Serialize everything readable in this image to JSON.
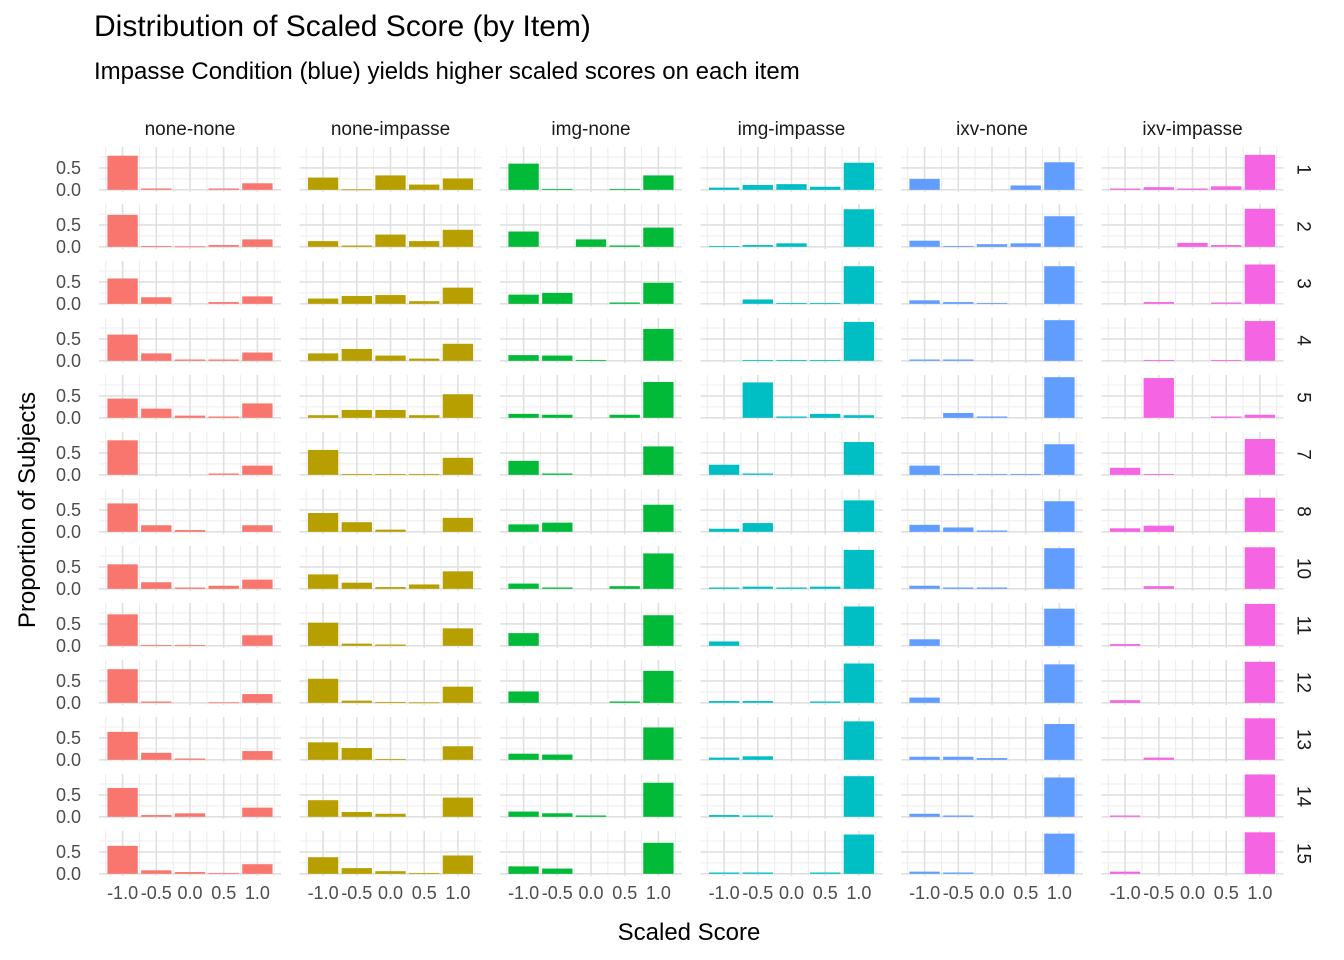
{
  "title": "Distribution of Scaled Score (by Item)",
  "subtitle": "Impasse Condition (blue) yields higher scaled scores on each item",
  "chart_data": {
    "type": "bar",
    "title": "Distribution of Scaled Score (by Item)",
    "subtitle": "Impasse Condition (blue) yields higher scaled scores on each item",
    "xlabel": "Scaled Score",
    "ylabel": "Proportion of Subjects",
    "x_categories": [
      -1.0,
      -0.5,
      0.0,
      0.5,
      1.0
    ],
    "x_tick_labels": [
      "-1.0",
      "-0.5",
      "0.0",
      "0.5",
      "1.0"
    ],
    "y_tick_labels": [
      "0.0",
      "0.5"
    ],
    "y_ticks": [
      0.0,
      0.5
    ],
    "ylim": [
      0,
      1
    ],
    "grid": true,
    "legend": "none",
    "columns": [
      {
        "name": "none-none",
        "color": "#F8766D"
      },
      {
        "name": "none-impasse",
        "color": "#B79F00"
      },
      {
        "name": "img-none",
        "color": "#00BA38"
      },
      {
        "name": "img-impasse",
        "color": "#00BFC4"
      },
      {
        "name": "ixv-none",
        "color": "#619CFF"
      },
      {
        "name": "ixv-impasse",
        "color": "#F564E3"
      }
    ],
    "rows": [
      "1",
      "2",
      "3",
      "4",
      "5",
      "7",
      "8",
      "10",
      "11",
      "12",
      "13",
      "14",
      "15"
    ],
    "values": [
      [
        [
          0.78,
          0.03,
          0,
          0.03,
          0.15
        ],
        [
          0.28,
          0.01,
          0.33,
          0.12,
          0.26
        ],
        [
          0.6,
          0.02,
          0,
          0.02,
          0.33
        ],
        [
          0.05,
          0.11,
          0.13,
          0.07,
          0.62
        ],
        [
          0.25,
          0,
          0,
          0.1,
          0.63
        ],
        [
          0.03,
          0.06,
          0.03,
          0.08,
          0.8
        ]
      ],
      [
        [
          0.73,
          0.02,
          0.01,
          0.04,
          0.17
        ],
        [
          0.13,
          0.03,
          0.28,
          0.13,
          0.39
        ],
        [
          0.35,
          0,
          0.17,
          0.03,
          0.44
        ],
        [
          0.02,
          0.04,
          0.08,
          0,
          0.86
        ],
        [
          0.14,
          0.02,
          0.06,
          0.08,
          0.7
        ],
        [
          0,
          0,
          0.09,
          0.04,
          0.87
        ]
      ],
      [
        [
          0.58,
          0.15,
          0,
          0.04,
          0.17
        ],
        [
          0.12,
          0.18,
          0.2,
          0.06,
          0.37
        ],
        [
          0.21,
          0.25,
          0,
          0.03,
          0.48
        ],
        [
          0,
          0.1,
          0.02,
          0.02,
          0.86
        ],
        [
          0.08,
          0.04,
          0.02,
          0,
          0.86
        ],
        [
          0,
          0.04,
          0,
          0.03,
          0.9
        ]
      ],
      [
        [
          0.6,
          0.17,
          0.03,
          0.03,
          0.19
        ],
        [
          0.17,
          0.27,
          0.12,
          0.05,
          0.39
        ],
        [
          0.13,
          0.12,
          0.02,
          0,
          0.73
        ],
        [
          0,
          0.02,
          0.02,
          0.02,
          0.89
        ],
        [
          0.03,
          0.03,
          0,
          0,
          0.93
        ],
        [
          0,
          0.02,
          0,
          0.02,
          0.91
        ]
      ],
      [
        [
          0.44,
          0.21,
          0.05,
          0.03,
          0.33
        ],
        [
          0.06,
          0.18,
          0.18,
          0.06,
          0.54
        ],
        [
          0.09,
          0.07,
          0,
          0.07,
          0.82
        ],
        [
          0,
          0.81,
          0.03,
          0.09,
          0.06
        ],
        [
          0,
          0.11,
          0.03,
          0,
          0.93
        ],
        [
          0,
          0.91,
          0,
          0.03,
          0.07
        ]
      ],
      [
        [
          0.79,
          0,
          0,
          0.03,
          0.21
        ],
        [
          0.57,
          0.02,
          0.02,
          0.02,
          0.39
        ],
        [
          0.32,
          0.03,
          0,
          0,
          0.65
        ],
        [
          0.23,
          0.03,
          0,
          0,
          0.75
        ],
        [
          0.21,
          0.02,
          0.02,
          0.02,
          0.7
        ],
        [
          0.16,
          0.02,
          0,
          0,
          0.82
        ]
      ],
      [
        [
          0.65,
          0.15,
          0.04,
          0,
          0.15
        ],
        [
          0.43,
          0.22,
          0.05,
          0,
          0.32
        ],
        [
          0.17,
          0.21,
          0,
          0,
          0.62
        ],
        [
          0.07,
          0.2,
          0,
          0,
          0.72
        ],
        [
          0.16,
          0.1,
          0.03,
          0,
          0.7
        ],
        [
          0.08,
          0.14,
          0,
          0,
          0.78
        ]
      ],
      [
        [
          0.56,
          0.15,
          0.03,
          0.07,
          0.21
        ],
        [
          0.33,
          0.14,
          0.04,
          0.1,
          0.4
        ],
        [
          0.12,
          0.03,
          0,
          0.06,
          0.81
        ],
        [
          0.03,
          0.05,
          0.03,
          0.05,
          0.89
        ],
        [
          0.07,
          0.03,
          0.03,
          0,
          0.93
        ],
        [
          0,
          0.06,
          0,
          0,
          0.95
        ]
      ],
      [
        [
          0.72,
          0.02,
          0.02,
          0,
          0.24
        ],
        [
          0.53,
          0.05,
          0.03,
          0,
          0.4
        ],
        [
          0.29,
          0,
          0,
          0,
          0.7
        ],
        [
          0.1,
          0,
          0,
          0,
          0.9
        ],
        [
          0.15,
          0,
          0,
          0,
          0.85
        ],
        [
          0.04,
          0,
          0,
          0,
          0.96
        ]
      ],
      [
        [
          0.77,
          0.03,
          0,
          0.01,
          0.2
        ],
        [
          0.55,
          0.05,
          0.02,
          0.01,
          0.37
        ],
        [
          0.26,
          0,
          0,
          0.03,
          0.73
        ],
        [
          0.04,
          0.04,
          0,
          0.03,
          0.9
        ],
        [
          0.12,
          0,
          0,
          0,
          0.88
        ],
        [
          0.06,
          0,
          0,
          0,
          0.94
        ]
      ],
      [
        [
          0.64,
          0.16,
          0.03,
          0,
          0.2
        ],
        [
          0.4,
          0.27,
          0.02,
          0,
          0.31
        ],
        [
          0.14,
          0.12,
          0,
          0,
          0.74
        ],
        [
          0.05,
          0.08,
          0,
          0,
          0.88
        ],
        [
          0.07,
          0.07,
          0.04,
          0,
          0.82
        ],
        [
          0,
          0.05,
          0,
          0,
          0.95
        ]
      ],
      [
        [
          0.66,
          0.04,
          0.08,
          0,
          0.21
        ],
        [
          0.38,
          0.11,
          0.07,
          0,
          0.44
        ],
        [
          0.12,
          0.08,
          0.03,
          0,
          0.78
        ],
        [
          0.04,
          0.03,
          0,
          0,
          0.93
        ],
        [
          0.07,
          0.03,
          0,
          0,
          0.9
        ],
        [
          0.03,
          0,
          0,
          0,
          0.97
        ]
      ],
      [
        [
          0.64,
          0.08,
          0.04,
          0.02,
          0.22
        ],
        [
          0.38,
          0.13,
          0.06,
          0.02,
          0.42
        ],
        [
          0.17,
          0.12,
          0,
          0,
          0.71
        ],
        [
          0.03,
          0.03,
          0,
          0.03,
          0.9
        ],
        [
          0.05,
          0.03,
          0,
          0,
          0.92
        ],
        [
          0.05,
          0,
          0,
          0,
          0.95
        ]
      ]
    ]
  }
}
